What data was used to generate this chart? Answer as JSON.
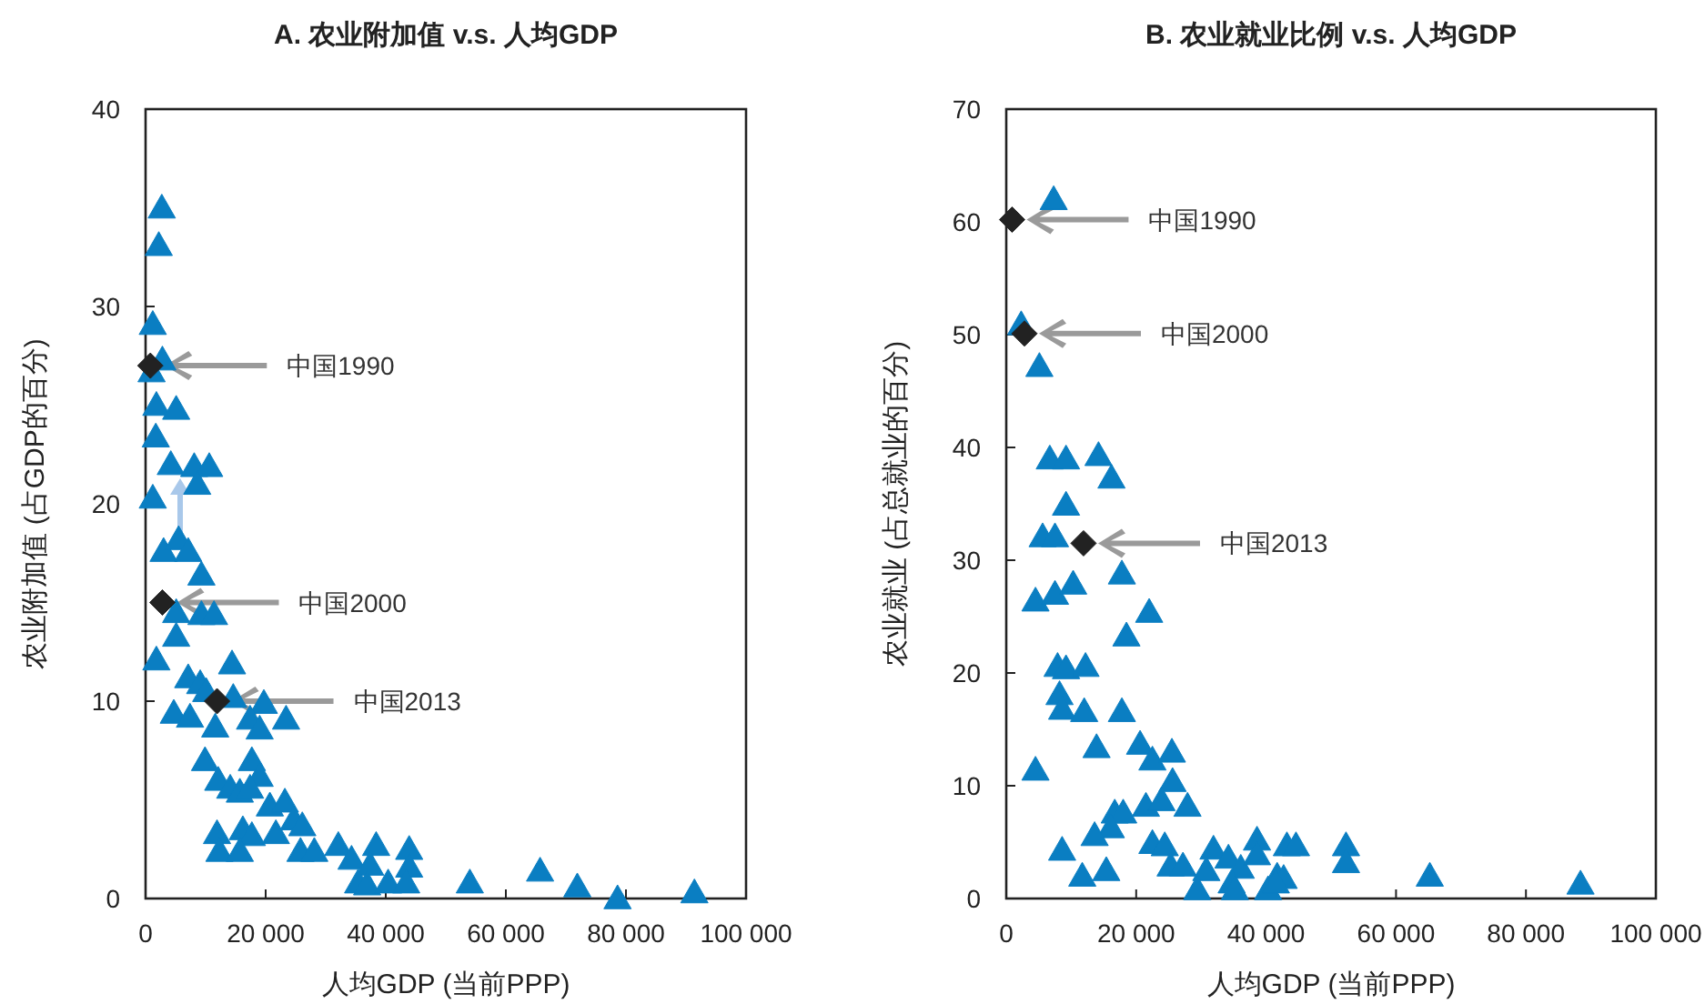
{
  "chart_data": [
    {
      "type": "scatter",
      "title": "A. 农业附加值 v.s. 人均GDP",
      "xlabel": "人均GDP (当前PPP)",
      "ylabel": "农业附加值 (占GDP的百分)",
      "xlim": [
        0,
        100000
      ],
      "ylim": [
        0,
        40
      ],
      "xticks": [
        0,
        {
          "value": 20000,
          "label": "20 000"
        },
        {
          "value": 40000,
          "label": "40 000"
        },
        {
          "value": 60000,
          "label": "60 000"
        },
        {
          "value": 80000,
          "label": "80 000"
        },
        {
          "value": 100000,
          "label": "100 000"
        }
      ],
      "yticks": [
        0,
        10,
        20,
        30,
        40
      ],
      "series": [
        {
          "color": "#0a7ec2",
          "marker": "triangle",
          "x": [
            2700,
            2200,
            1200,
            2800,
            1000,
            1800,
            5100,
            1700,
            4200,
            8100,
            10600,
            8600,
            1200,
            3000,
            5500,
            7100,
            9300,
            5100,
            9300,
            11400,
            5100,
            1800,
            14400,
            7100,
            9100,
            10100,
            14600,
            19700,
            4700,
            7400,
            11600,
            17400,
            19000,
            23400,
            9900,
            17700,
            19000,
            12100,
            14100,
            15700,
            17400,
            20700,
            23200,
            24700,
            26100,
            11900,
            16200,
            17700,
            21700,
            12300,
            15700,
            25800,
            28100,
            32100,
            34300,
            38400,
            43900,
            43900,
            37400,
            35400,
            36900,
            40400,
            43400,
            54000,
            65700,
            71900,
            78600,
            91400
          ],
          "values": [
            35.0,
            33.1,
            29.1,
            27.3,
            26.7,
            25.0,
            24.8,
            23.4,
            22.0,
            21.9,
            21.9,
            21.0,
            20.3,
            17.6,
            18.2,
            17.6,
            16.4,
            14.5,
            14.4,
            14.4,
            13.3,
            12.1,
            11.9,
            11.2,
            10.9,
            10.5,
            10.2,
            9.9,
            9.4,
            9.2,
            8.7,
            9.1,
            8.6,
            9.1,
            7.0,
            7.0,
            6.2,
            6.0,
            5.6,
            5.4,
            5.6,
            4.7,
            4.9,
            4.0,
            3.7,
            3.3,
            3.5,
            3.2,
            3.3,
            2.4,
            2.4,
            2.4,
            2.4,
            2.7,
            2.0,
            2.7,
            2.5,
            1.6,
            1.7,
            0.8,
            0.7,
            0.8,
            0.8,
            0.8,
            1.4,
            0.6,
            0,
            0.3
          ]
        },
        {
          "color": "#222222",
          "marker": "diamond",
          "x": [
            800,
            2800,
            11900
          ],
          "values": [
            27.0,
            15.0,
            10.0
          ]
        }
      ],
      "annotations": [
        "中国1990",
        "中国2000",
        "中国2013"
      ]
    },
    {
      "type": "scatter",
      "title": "B. 农业就业比例  v.s. 人均GDP",
      "xlabel": "人均GDP (当前PPP)",
      "ylabel": "农业就业 (占总就业的百分)",
      "xlim": [
        0,
        100000
      ],
      "ylim": [
        0,
        70
      ],
      "xticks": [
        0,
        {
          "value": 20000,
          "label": "20 000"
        },
        {
          "value": 40000,
          "label": "40 000"
        },
        {
          "value": 60000,
          "label": "60 000"
        },
        {
          "value": 80000,
          "label": "80 000"
        },
        {
          "value": 100000,
          "label": "100 000"
        }
      ],
      "yticks": [
        0,
        10,
        20,
        30,
        40,
        50,
        60,
        70
      ],
      "series": [
        {
          "color": "#0a7ec2",
          "marker": "triangle",
          "x": [
            7300,
            2300,
            5100,
            6700,
            9200,
            14200,
            16200,
            9200,
            5600,
            7500,
            4500,
            7500,
            10300,
            17800,
            22000,
            18500,
            7900,
            9200,
            12200,
            8200,
            8600,
            12000,
            17800,
            13900,
            20600,
            22500,
            25500,
            25600,
            4500,
            21500,
            23900,
            27900,
            16700,
            18000,
            16100,
            13600,
            8600,
            22500,
            24400,
            25300,
            27200,
            31900,
            34200,
            36100,
            30800,
            38600,
            38600,
            43200,
            44600,
            41700,
            42700,
            11700,
            15400,
            29400,
            34700,
            35200,
            40300,
            41500,
            52300,
            52300,
            65200,
            88400
          ],
          "values": [
            62.0,
            50.9,
            47.2,
            39.0,
            39.0,
            39.3,
            37.3,
            34.9,
            32.1,
            32.1,
            26.4,
            27.0,
            27.9,
            28.8,
            25.4,
            23.3,
            20.6,
            20.4,
            20.6,
            18.1,
            16.8,
            16.6,
            16.6,
            13.4,
            13.7,
            12.3,
            13.0,
            10.4,
            11.4,
            8.2,
            8.7,
            8.2,
            7.6,
            7.6,
            6.3,
            5.6,
            4.3,
            4.9,
            4.7,
            2.9,
            2.9,
            4.4,
            3.6,
            2.7,
            2.5,
            5.2,
            3.9,
            4.7,
            4.7,
            2.0,
            1.8,
            2.0,
            2.5,
            0.8,
            1.4,
            0.8,
            0.8,
            1.4,
            4.7,
            3.2,
            2.0,
            1.3
          ]
        },
        {
          "color": "#222222",
          "marker": "diamond",
          "x": [
            900,
            2800,
            11900
          ],
          "values": [
            60.2,
            50.1,
            31.5
          ]
        }
      ],
      "annotations": [
        "中国1990",
        "中国2000",
        "中国2013"
      ]
    }
  ]
}
